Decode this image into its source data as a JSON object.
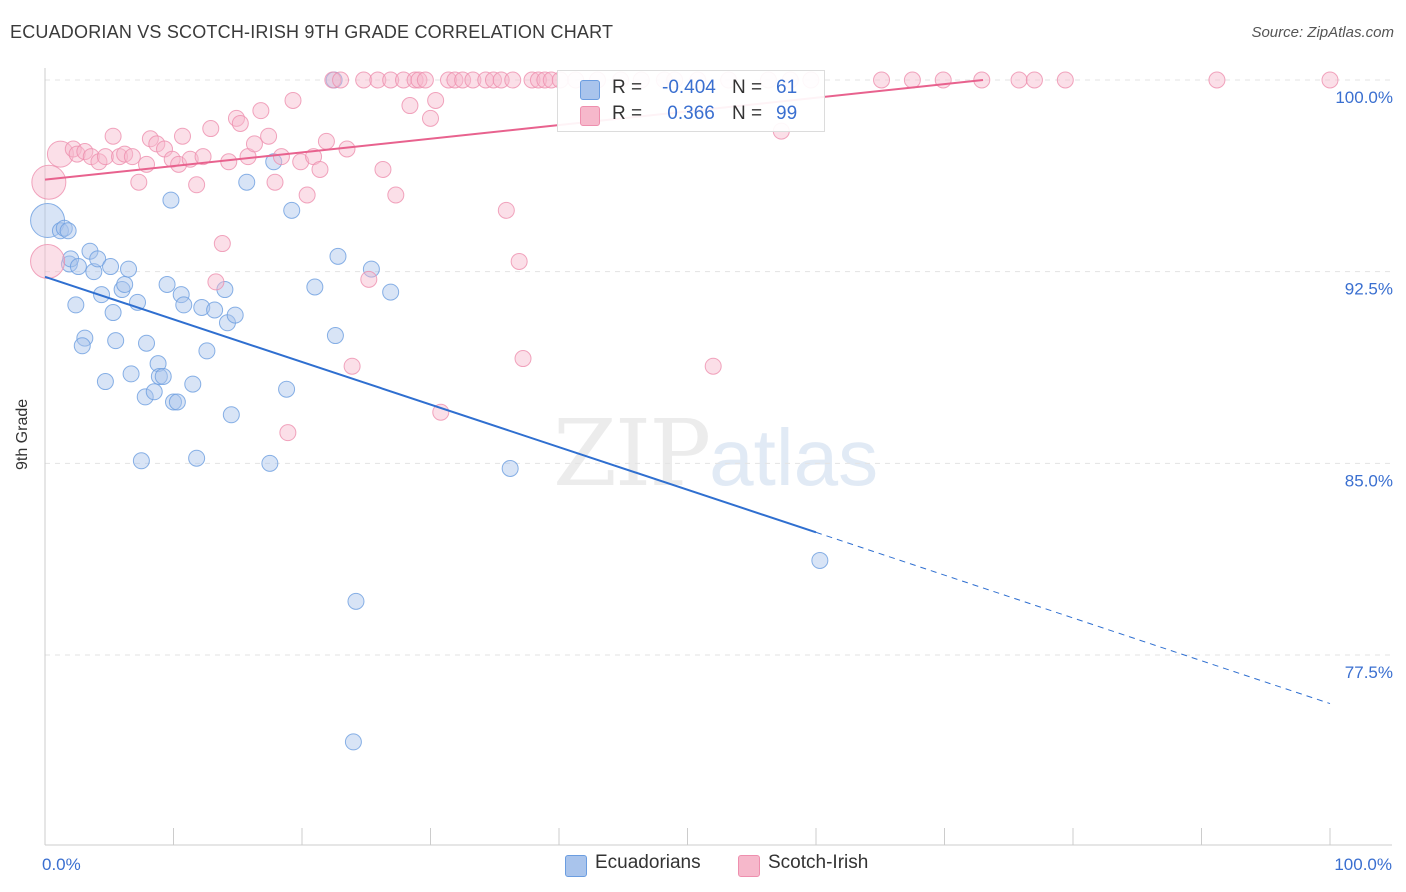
{
  "title": "ECUADORIAN VS SCOTCH-IRISH 9TH GRADE CORRELATION CHART",
  "source": "Source: ZipAtlas.com",
  "watermark": {
    "zip": "ZIP",
    "atlas": "atlas"
  },
  "legend": {
    "rows": [
      {
        "r_label": "R =",
        "r_value": "-0.404",
        "n_label": "N =",
        "n_value": "61",
        "color": "#a9c4ec"
      },
      {
        "r_label": "R =",
        "r_value": " 0.366",
        "n_label": "N =",
        "n_value": "99",
        "color": "#f6b8cb"
      }
    ]
  },
  "bottom_legend": [
    {
      "label": "Ecuadorians",
      "color": "#a9c4ec"
    },
    {
      "label": "Scotch-Irish",
      "color": "#f6b8cb"
    }
  ],
  "chart_data": {
    "type": "scatter",
    "title": "ECUADORIAN VS SCOTCH-IRISH 9TH GRADE CORRELATION CHART",
    "xlabel": "",
    "ylabel": "9th Grade",
    "xlim": [
      0,
      100
    ],
    "ylim": [
      71.5,
      100.8
    ],
    "x_tick_labels": [
      "0.0%",
      "100.0%"
    ],
    "y_ticks": [
      77.5,
      85.0,
      92.5,
      100.0
    ],
    "y_tick_labels": [
      "77.5%",
      "85.0%",
      "92.5%",
      "100.0%"
    ],
    "grid": true,
    "series": [
      {
        "name": "Ecuadorians",
        "color": "#6b9de0",
        "fill": "#a9c4ec",
        "trend": {
          "x": [
            0,
            60
          ],
          "y": [
            92.3,
            82.3
          ],
          "dashed_to": [
            100,
            75.6
          ],
          "color": "#2f6fd0"
        },
        "points": [
          [
            0.2,
            94.5,
            3
          ],
          [
            1.2,
            94.1,
            1
          ],
          [
            1.5,
            94.2,
            1
          ],
          [
            1.8,
            94.1,
            1
          ],
          [
            1.9,
            92.8,
            1
          ],
          [
            2.0,
            93.0,
            1
          ],
          [
            2.6,
            92.7,
            1
          ],
          [
            2.4,
            91.2,
            1
          ],
          [
            3.1,
            89.9,
            1
          ],
          [
            2.9,
            89.6,
            1
          ],
          [
            3.5,
            93.3,
            1
          ],
          [
            3.8,
            92.5,
            1
          ],
          [
            4.1,
            93.0,
            1
          ],
          [
            4.4,
            91.6,
            1
          ],
          [
            4.7,
            88.2,
            1
          ],
          [
            5.1,
            92.7,
            1
          ],
          [
            5.3,
            90.9,
            1
          ],
          [
            5.5,
            89.8,
            1
          ],
          [
            6.0,
            91.8,
            1
          ],
          [
            6.2,
            92.0,
            1
          ],
          [
            6.5,
            92.6,
            1
          ],
          [
            6.7,
            88.5,
            1
          ],
          [
            7.2,
            91.3,
            1
          ],
          [
            7.5,
            85.1,
            1
          ],
          [
            7.8,
            87.6,
            1
          ],
          [
            7.9,
            89.7,
            1
          ],
          [
            8.5,
            87.8,
            1
          ],
          [
            8.8,
            88.9,
            1
          ],
          [
            8.9,
            88.4,
            1
          ],
          [
            9.2,
            88.4,
            1
          ],
          [
            9.5,
            92.0,
            1
          ],
          [
            9.8,
            95.3,
            1
          ],
          [
            10.0,
            87.4,
            1
          ],
          [
            10.3,
            87.4,
            1
          ],
          [
            10.6,
            91.6,
            1
          ],
          [
            10.8,
            91.2,
            1
          ],
          [
            11.5,
            88.1,
            1
          ],
          [
            11.8,
            85.2,
            1
          ],
          [
            12.2,
            91.1,
            1
          ],
          [
            12.6,
            89.4,
            1
          ],
          [
            13.2,
            91.0,
            1
          ],
          [
            14.0,
            91.8,
            1
          ],
          [
            14.2,
            90.5,
            1
          ],
          [
            14.5,
            86.9,
            1
          ],
          [
            14.8,
            90.8,
            1
          ],
          [
            15.7,
            96.0,
            1
          ],
          [
            17.5,
            85.0,
            1
          ],
          [
            17.8,
            96.8,
            1
          ],
          [
            18.8,
            87.9,
            1
          ],
          [
            19.2,
            94.9,
            1
          ],
          [
            21.0,
            91.9,
            1
          ],
          [
            22.5,
            100.0,
            1
          ],
          [
            22.8,
            93.1,
            1
          ],
          [
            22.6,
            90.0,
            1
          ],
          [
            24.2,
            79.6,
            1
          ],
          [
            24.0,
            74.1,
            1
          ],
          [
            25.4,
            92.6,
            1
          ],
          [
            26.9,
            91.7,
            1
          ],
          [
            36.2,
            84.8,
            1
          ],
          [
            60.3,
            81.2,
            1
          ]
        ]
      },
      {
        "name": "Scotch-Irish",
        "color": "#ee8fae",
        "fill": "#f6b8cb",
        "trend": {
          "x": [
            0,
            73
          ],
          "y": [
            96.1,
            100.0
          ],
          "color": "#e8628e"
        },
        "points": [
          [
            0.3,
            96.0,
            3
          ],
          [
            0.2,
            92.9,
            3
          ],
          [
            1.2,
            97.1,
            2
          ],
          [
            2.2,
            97.3,
            1
          ],
          [
            2.5,
            97.1,
            1
          ],
          [
            3.1,
            97.2,
            1
          ],
          [
            3.6,
            97.0,
            1
          ],
          [
            4.2,
            96.8,
            1
          ],
          [
            4.7,
            97.0,
            1
          ],
          [
            5.3,
            97.8,
            1
          ],
          [
            5.8,
            97.0,
            1
          ],
          [
            6.2,
            97.1,
            1
          ],
          [
            6.8,
            97.0,
            1
          ],
          [
            7.3,
            96.0,
            1
          ],
          [
            7.9,
            96.7,
            1
          ],
          [
            8.2,
            97.7,
            1
          ],
          [
            8.7,
            97.5,
            1
          ],
          [
            9.3,
            97.3,
            1
          ],
          [
            9.9,
            96.9,
            1
          ],
          [
            10.4,
            96.7,
            1
          ],
          [
            10.7,
            97.8,
            1
          ],
          [
            11.3,
            96.9,
            1
          ],
          [
            11.8,
            95.9,
            1
          ],
          [
            12.3,
            97.0,
            1
          ],
          [
            12.9,
            98.1,
            1
          ],
          [
            13.3,
            92.1,
            1
          ],
          [
            13.8,
            93.6,
            1
          ],
          [
            14.3,
            96.8,
            1
          ],
          [
            14.9,
            98.5,
            1
          ],
          [
            15.2,
            98.3,
            1
          ],
          [
            15.8,
            97.0,
            1
          ],
          [
            16.3,
            97.5,
            1
          ],
          [
            16.8,
            98.8,
            1
          ],
          [
            17.4,
            97.8,
            1
          ],
          [
            17.9,
            96.0,
            1
          ],
          [
            18.4,
            97.0,
            1
          ],
          [
            18.9,
            86.2,
            1
          ],
          [
            19.3,
            99.2,
            1
          ],
          [
            19.9,
            96.8,
            1
          ],
          [
            20.4,
            95.5,
            1
          ],
          [
            20.9,
            97.0,
            1
          ],
          [
            21.4,
            96.5,
            1
          ],
          [
            21.9,
            97.6,
            1
          ],
          [
            22.4,
            100.0,
            1
          ],
          [
            23.0,
            100.0,
            1
          ],
          [
            23.5,
            97.3,
            1
          ],
          [
            23.9,
            88.8,
            1
          ],
          [
            24.8,
            100.0,
            1
          ],
          [
            25.2,
            92.2,
            1
          ],
          [
            25.9,
            100.0,
            1
          ],
          [
            26.3,
            96.5,
            1
          ],
          [
            26.9,
            100.0,
            1
          ],
          [
            27.3,
            95.5,
            1
          ],
          [
            27.9,
            100.0,
            1
          ],
          [
            28.4,
            99.0,
            1
          ],
          [
            28.8,
            100.0,
            1
          ],
          [
            29.1,
            100.0,
            1
          ],
          [
            29.6,
            100.0,
            1
          ],
          [
            30.0,
            98.5,
            1
          ],
          [
            30.4,
            99.2,
            1
          ],
          [
            30.8,
            87.0,
            1
          ],
          [
            31.4,
            100.0,
            1
          ],
          [
            31.9,
            100.0,
            1
          ],
          [
            32.5,
            100.0,
            1
          ],
          [
            33.3,
            100.0,
            1
          ],
          [
            34.3,
            100.0,
            1
          ],
          [
            34.9,
            100.0,
            1
          ],
          [
            35.5,
            100.0,
            1
          ],
          [
            35.9,
            94.9,
            1
          ],
          [
            36.4,
            100.0,
            1
          ],
          [
            36.9,
            92.9,
            1
          ],
          [
            37.2,
            89.1,
            1
          ],
          [
            37.9,
            100.0,
            1
          ],
          [
            38.4,
            100.0,
            1
          ],
          [
            38.9,
            100.0,
            1
          ],
          [
            39.4,
            100.0,
            1
          ],
          [
            40.1,
            100.0,
            1
          ],
          [
            41.3,
            100.0,
            1
          ],
          [
            43.0,
            100.0,
            1
          ],
          [
            44.8,
            100.0,
            1
          ],
          [
            46.4,
            100.0,
            1
          ],
          [
            48.2,
            100.0,
            1
          ],
          [
            50.8,
            100.0,
            1
          ],
          [
            53.2,
            100.0,
            1
          ],
          [
            56.3,
            100.0,
            1
          ],
          [
            57.3,
            98.0,
            1
          ],
          [
            58.0,
            100.0,
            1
          ],
          [
            59.6,
            100.0,
            1
          ],
          [
            65.1,
            100.0,
            1
          ],
          [
            67.5,
            100.0,
            1
          ],
          [
            69.9,
            100.0,
            1
          ],
          [
            72.9,
            100.0,
            1
          ],
          [
            75.8,
            100.0,
            1
          ],
          [
            77.0,
            100.0,
            1
          ],
          [
            79.4,
            100.0,
            1
          ],
          [
            91.2,
            100.0,
            1
          ],
          [
            100.0,
            100.0,
            1
          ],
          [
            49.0,
            100.0,
            1
          ],
          [
            52.0,
            88.8,
            1
          ]
        ]
      }
    ]
  }
}
